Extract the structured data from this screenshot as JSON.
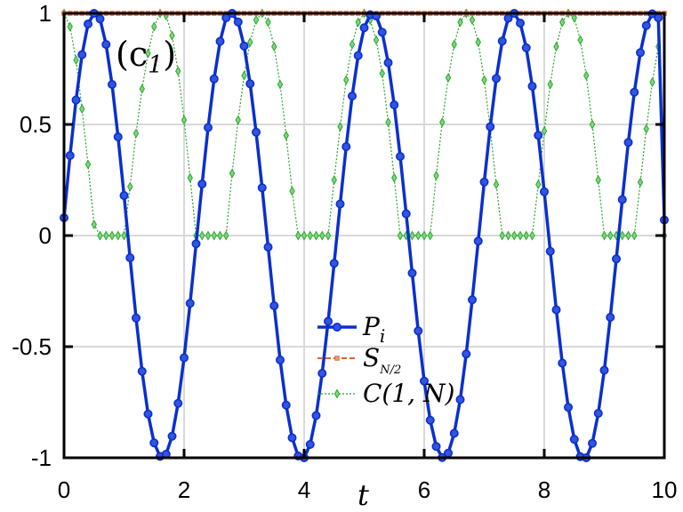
{
  "chart_data": {
    "type": "line",
    "panel_label": "(c",
    "panel_label_sub": "1",
    "panel_label_close": ")",
    "xlabel": "t",
    "ylabel": "",
    "xlim": [
      0,
      10
    ],
    "ylim": [
      -1,
      1
    ],
    "x_ticks": [
      0,
      2,
      4,
      6,
      8,
      10
    ],
    "x_tick_labels": [
      "0",
      "2",
      "4",
      "6",
      "8",
      "10"
    ],
    "y_ticks": [
      -1,
      -0.5,
      0,
      0.5,
      1
    ],
    "y_tick_labels": [
      "-1",
      "-0.5",
      "0",
      "0.5",
      "1"
    ],
    "grid": true,
    "legend_position": "lower-center",
    "x": [
      0.0,
      0.1,
      0.2,
      0.3,
      0.4,
      0.5,
      0.6,
      0.7,
      0.8,
      0.9,
      1.0,
      1.1,
      1.2,
      1.3,
      1.4,
      1.5,
      1.6,
      1.7,
      1.8,
      1.9,
      2.0,
      2.1,
      2.2,
      2.3,
      2.4,
      2.5,
      2.6,
      2.7,
      2.8,
      2.9,
      3.0,
      3.1,
      3.2,
      3.3,
      3.4,
      3.5,
      3.6,
      3.7,
      3.8,
      3.9,
      4.0,
      4.1,
      4.2,
      4.3,
      4.4,
      4.5,
      4.6,
      4.7,
      4.8,
      4.9,
      5.0,
      5.1,
      5.2,
      5.3,
      5.4,
      5.5,
      5.6,
      5.7,
      5.8,
      5.9,
      6.0,
      6.1,
      6.2,
      6.3,
      6.4,
      6.5,
      6.6,
      6.7,
      6.8,
      6.9,
      7.0,
      7.1,
      7.2,
      7.3,
      7.4,
      7.5,
      7.6,
      7.7,
      7.8,
      7.9,
      8.0,
      8.1,
      8.2,
      8.3,
      8.4,
      8.5,
      8.6,
      8.7,
      8.8,
      8.9,
      9.0,
      9.1,
      9.2,
      9.3,
      9.4,
      9.5,
      9.6,
      9.7,
      9.8,
      9.9,
      10.0
    ],
    "series": [
      {
        "name": "P",
        "name_sub": "i",
        "color": "#0a2fd0",
        "marker": "circle",
        "line_style": "solid",
        "values": [
          0.08,
          0.36,
          0.61,
          0.814,
          0.952,
          1.0,
          0.975,
          0.86,
          0.68,
          0.444,
          0.18,
          -0.1,
          -0.371,
          -0.611,
          -0.803,
          -0.933,
          -0.994,
          -0.984,
          -0.903,
          -0.755,
          -0.55,
          -0.305,
          -0.037,
          0.232,
          0.486,
          0.705,
          0.874,
          0.98,
          1.0,
          0.961,
          0.853,
          0.683,
          0.465,
          0.215,
          -0.052,
          -0.316,
          -0.56,
          -0.763,
          -0.91,
          -0.992,
          -1.0,
          -0.94,
          -0.81,
          -0.62,
          -0.386,
          -0.125,
          0.142,
          0.4,
          0.628,
          0.81,
          0.935,
          0.994,
          0.988,
          0.915,
          0.778,
          0.588,
          0.356,
          0.098,
          -0.169,
          -0.429,
          -0.655,
          -0.831,
          -0.949,
          -0.999,
          -0.979,
          -0.89,
          -0.738,
          -0.533,
          -0.289,
          -0.025,
          0.241,
          0.49,
          0.707,
          0.875,
          0.978,
          1.0,
          0.956,
          0.845,
          0.672,
          0.451,
          0.197,
          -0.071,
          -0.334,
          -0.574,
          -0.773,
          -0.917,
          -0.995,
          -1.0,
          -0.935,
          -0.8,
          -0.606,
          -0.368,
          -0.105,
          0.162,
          0.419,
          0.645,
          0.823,
          0.945,
          0.998,
          0.98,
          0.07
        ]
      },
      {
        "name": "S",
        "name_sub": "N/2",
        "color": "#e8602a",
        "marker": "square",
        "line_style": "dashed",
        "values": [
          1,
          1,
          1,
          1,
          1,
          1,
          1,
          1,
          1,
          1,
          1,
          1,
          1,
          1,
          1,
          1,
          1,
          1,
          1,
          1,
          1,
          1,
          1,
          1,
          1,
          1,
          1,
          1,
          1,
          1,
          1,
          1,
          1,
          1,
          1,
          1,
          1,
          1,
          1,
          1,
          1,
          1,
          1,
          1,
          1,
          1,
          1,
          1,
          1,
          1,
          1,
          1,
          1,
          1,
          1,
          1,
          1,
          1,
          1,
          1,
          1,
          1,
          1,
          1,
          1,
          1,
          1,
          1,
          1,
          1,
          1,
          1,
          1,
          1,
          1,
          1,
          1,
          1,
          1,
          1,
          1,
          1,
          1,
          1,
          1,
          1,
          1,
          1,
          1,
          1,
          1,
          1,
          1,
          1,
          1,
          1,
          1,
          1,
          1,
          1,
          1
        ]
      },
      {
        "name": "C(1, N)",
        "color": "#2aa52a",
        "marker": "diamond",
        "line_style": "dotted",
        "values": [
          1.0,
          0.94,
          0.79,
          0.57,
          0.32,
          0.05,
          0.0,
          0.0,
          0.0,
          0.0,
          0.0,
          0.22,
          0.46,
          0.66,
          0.82,
          0.94,
          1.0,
          0.99,
          0.9,
          0.74,
          0.52,
          0.26,
          0.0,
          0.0,
          0.0,
          0.0,
          0.0,
          0.0,
          0.28,
          0.52,
          0.72,
          0.87,
          0.97,
          1.0,
          0.96,
          0.85,
          0.68,
          0.45,
          0.2,
          0.0,
          0.0,
          0.0,
          0.0,
          0.0,
          0.0,
          0.25,
          0.49,
          0.7,
          0.86,
          0.96,
          1.0,
          0.97,
          0.88,
          0.73,
          0.51,
          0.26,
          0.0,
          0.0,
          0.0,
          0.0,
          0.0,
          0.0,
          0.27,
          0.51,
          0.71,
          0.86,
          0.96,
          1.0,
          0.97,
          0.87,
          0.7,
          0.48,
          0.23,
          0.0,
          0.0,
          0.0,
          0.0,
          0.0,
          0.0,
          0.23,
          0.47,
          0.68,
          0.85,
          0.96,
          1.0,
          0.98,
          0.88,
          0.72,
          0.5,
          0.25,
          0.0,
          0.0,
          0.0,
          0.0,
          0.0,
          0.0,
          0.24,
          0.48,
          0.69,
          0.85,
          0.0
        ]
      }
    ]
  }
}
